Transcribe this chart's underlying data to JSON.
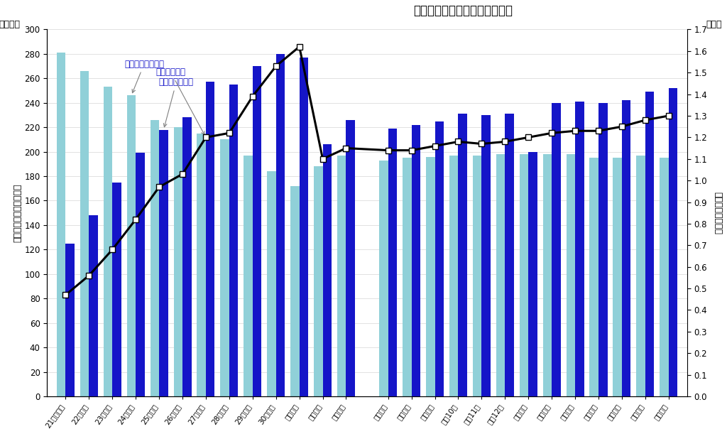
{
  "title": "求人、求職及び求人倍率の推移",
  "ylabel_left_top": "（万人）",
  "ylabel_right_top": "（倍）",
  "ylabel_left": "〈有効求人・有効求職〉",
  "ylabel_right": "〈有効求人倍率〉",
  "categories": [
    "21年度平均",
    "22年度〃",
    "23年度〃",
    "24年度〃",
    "25年度〃",
    "26年度〃",
    "27年度〃",
    "28年度〃",
    "29年度〃",
    "30年度〃",
    "元年度〃",
    "２年度〃",
    "３年度〃",
    "３年７月",
    "３年８月",
    "３年９月",
    "３年10月",
    "３年11月",
    "３年12月",
    "４年１月",
    "４年２月",
    "４年３月",
    "４年４月",
    "４年５月",
    "４年６月",
    "４年７月"
  ],
  "kyujin": [
    125,
    148,
    175,
    199,
    218,
    228,
    257,
    255,
    270,
    280,
    277,
    206,
    226,
    219,
    222,
    225,
    231,
    230,
    231,
    200,
    240,
    241,
    240,
    242,
    249,
    252
  ],
  "kyushoku": [
    281,
    266,
    253,
    246,
    226,
    220,
    215,
    210,
    197,
    184,
    172,
    188,
    197,
    193,
    195,
    196,
    197,
    197,
    198,
    198,
    198,
    198,
    195,
    195,
    197,
    195
  ],
  "bairitsu": [
    0.47,
    0.56,
    0.68,
    0.82,
    0.97,
    1.03,
    1.2,
    1.22,
    1.39,
    1.53,
    1.62,
    1.1,
    1.15,
    1.14,
    1.14,
    1.16,
    1.18,
    1.17,
    1.18,
    1.2,
    1.22,
    1.23,
    1.23,
    1.25,
    1.28,
    1.3
  ],
  "kyujin_color": "#1515C8",
  "kyushoku_color": "#90D0D8",
  "line_color": "#000000",
  "background_color": "#FFFFFF",
  "ylim_left": [
    0,
    300
  ],
  "ylim_right": [
    0.0,
    1.7
  ],
  "yticks_left": [
    0,
    20,
    40,
    60,
    80,
    100,
    120,
    140,
    160,
    180,
    200,
    220,
    240,
    260,
    280,
    300
  ],
  "yticks_right": [
    0.0,
    0.1,
    0.2,
    0.3,
    0.4,
    0.5,
    0.6,
    0.7,
    0.8,
    0.9,
    1.0,
    1.1,
    1.2,
    1.3,
    1.4,
    1.5,
    1.6,
    1.7
  ],
  "legend_kyushoku": "月間有効求職者数",
  "legend_kyujin": "月間有効求人数",
  "legend_bairitsu": "有効求人倍率",
  "separator_after_index": 12,
  "n_annual": 13,
  "n_monthly": 13
}
